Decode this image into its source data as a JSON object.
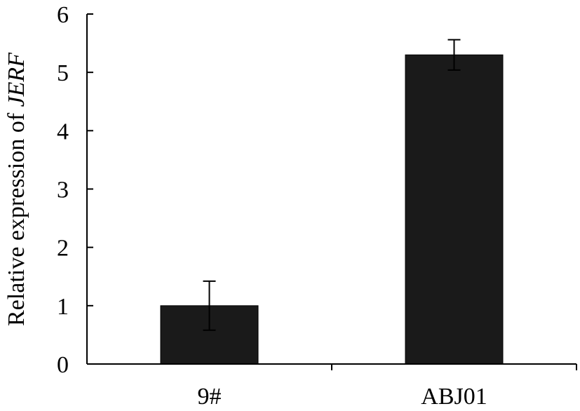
{
  "chart_data": {
    "type": "bar",
    "categories": [
      "9#",
      "ABJ01"
    ],
    "values": [
      1.0,
      5.3
    ],
    "errors": [
      0.42,
      0.26
    ],
    "ylabel_prefix": "Relative expression of ",
    "ylabel_gene": "JERF",
    "xlabel": "",
    "ylim": [
      0,
      6
    ],
    "yticks": [
      0,
      1,
      2,
      3,
      4,
      5,
      6
    ],
    "grid": false,
    "bar_color": "#1a1a1a",
    "axis_color": "#000000"
  }
}
